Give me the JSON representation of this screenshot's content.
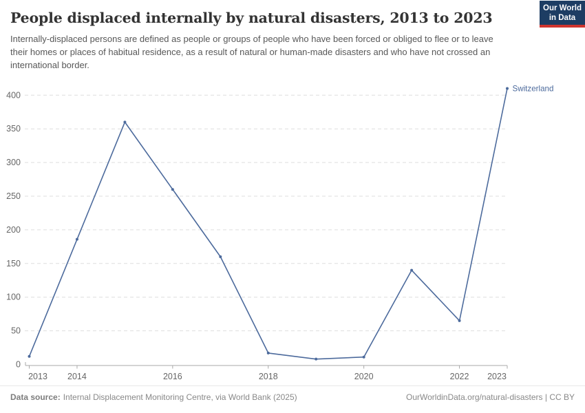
{
  "header": {
    "title": "People displaced internally by natural disasters, 2013 to 2023",
    "subtitle": "Internally-displaced persons are defined as people or groups of people who have been forced or obliged to flee or to leave their homes or places of habitual residence, as a result of natural or human-made disasters and who have not crossed an international border."
  },
  "logo": {
    "line1": "Our World",
    "line2": "in Data"
  },
  "colors": {
    "series_blue": "#4C6A9C",
    "grid": "#dddddd",
    "axis": "#a8a8a8",
    "tick_label": "#666666",
    "title_text": "#333333",
    "subtitle_text": "#575757",
    "footer_text": "#888888",
    "logo_bg": "#1d3d63",
    "logo_accent": "#cf342e"
  },
  "chart_data": {
    "type": "line",
    "title": "People displaced internally by natural disasters, 2013 to 2023",
    "xlabel": "",
    "ylabel": "",
    "x": [
      2013,
      2014,
      2015,
      2016,
      2017,
      2018,
      2019,
      2020,
      2021,
      2022,
      2023
    ],
    "series": [
      {
        "name": "Switzerland",
        "color": "#4C6A9C",
        "values": [
          12,
          186,
          360,
          260,
          160,
          17,
          8,
          11,
          140,
          65,
          410
        ]
      }
    ],
    "x_tick_labels": [
      2013,
      2014,
      2016,
      2018,
      2020,
      2022,
      2023
    ],
    "y_ticks": [
      0,
      50,
      100,
      150,
      200,
      250,
      300,
      350,
      400
    ],
    "xlim": [
      2013,
      2023
    ],
    "ylim": [
      0,
      415
    ],
    "grid": "horizontal-dashed",
    "legend": "end-of-line-label"
  },
  "footer": {
    "source_label": "Data source:",
    "source_text": "Internal Displacement Monitoring Centre, via World Bank (2025)",
    "link_text": "OurWorldinData.org/natural-disasters | CC BY"
  }
}
